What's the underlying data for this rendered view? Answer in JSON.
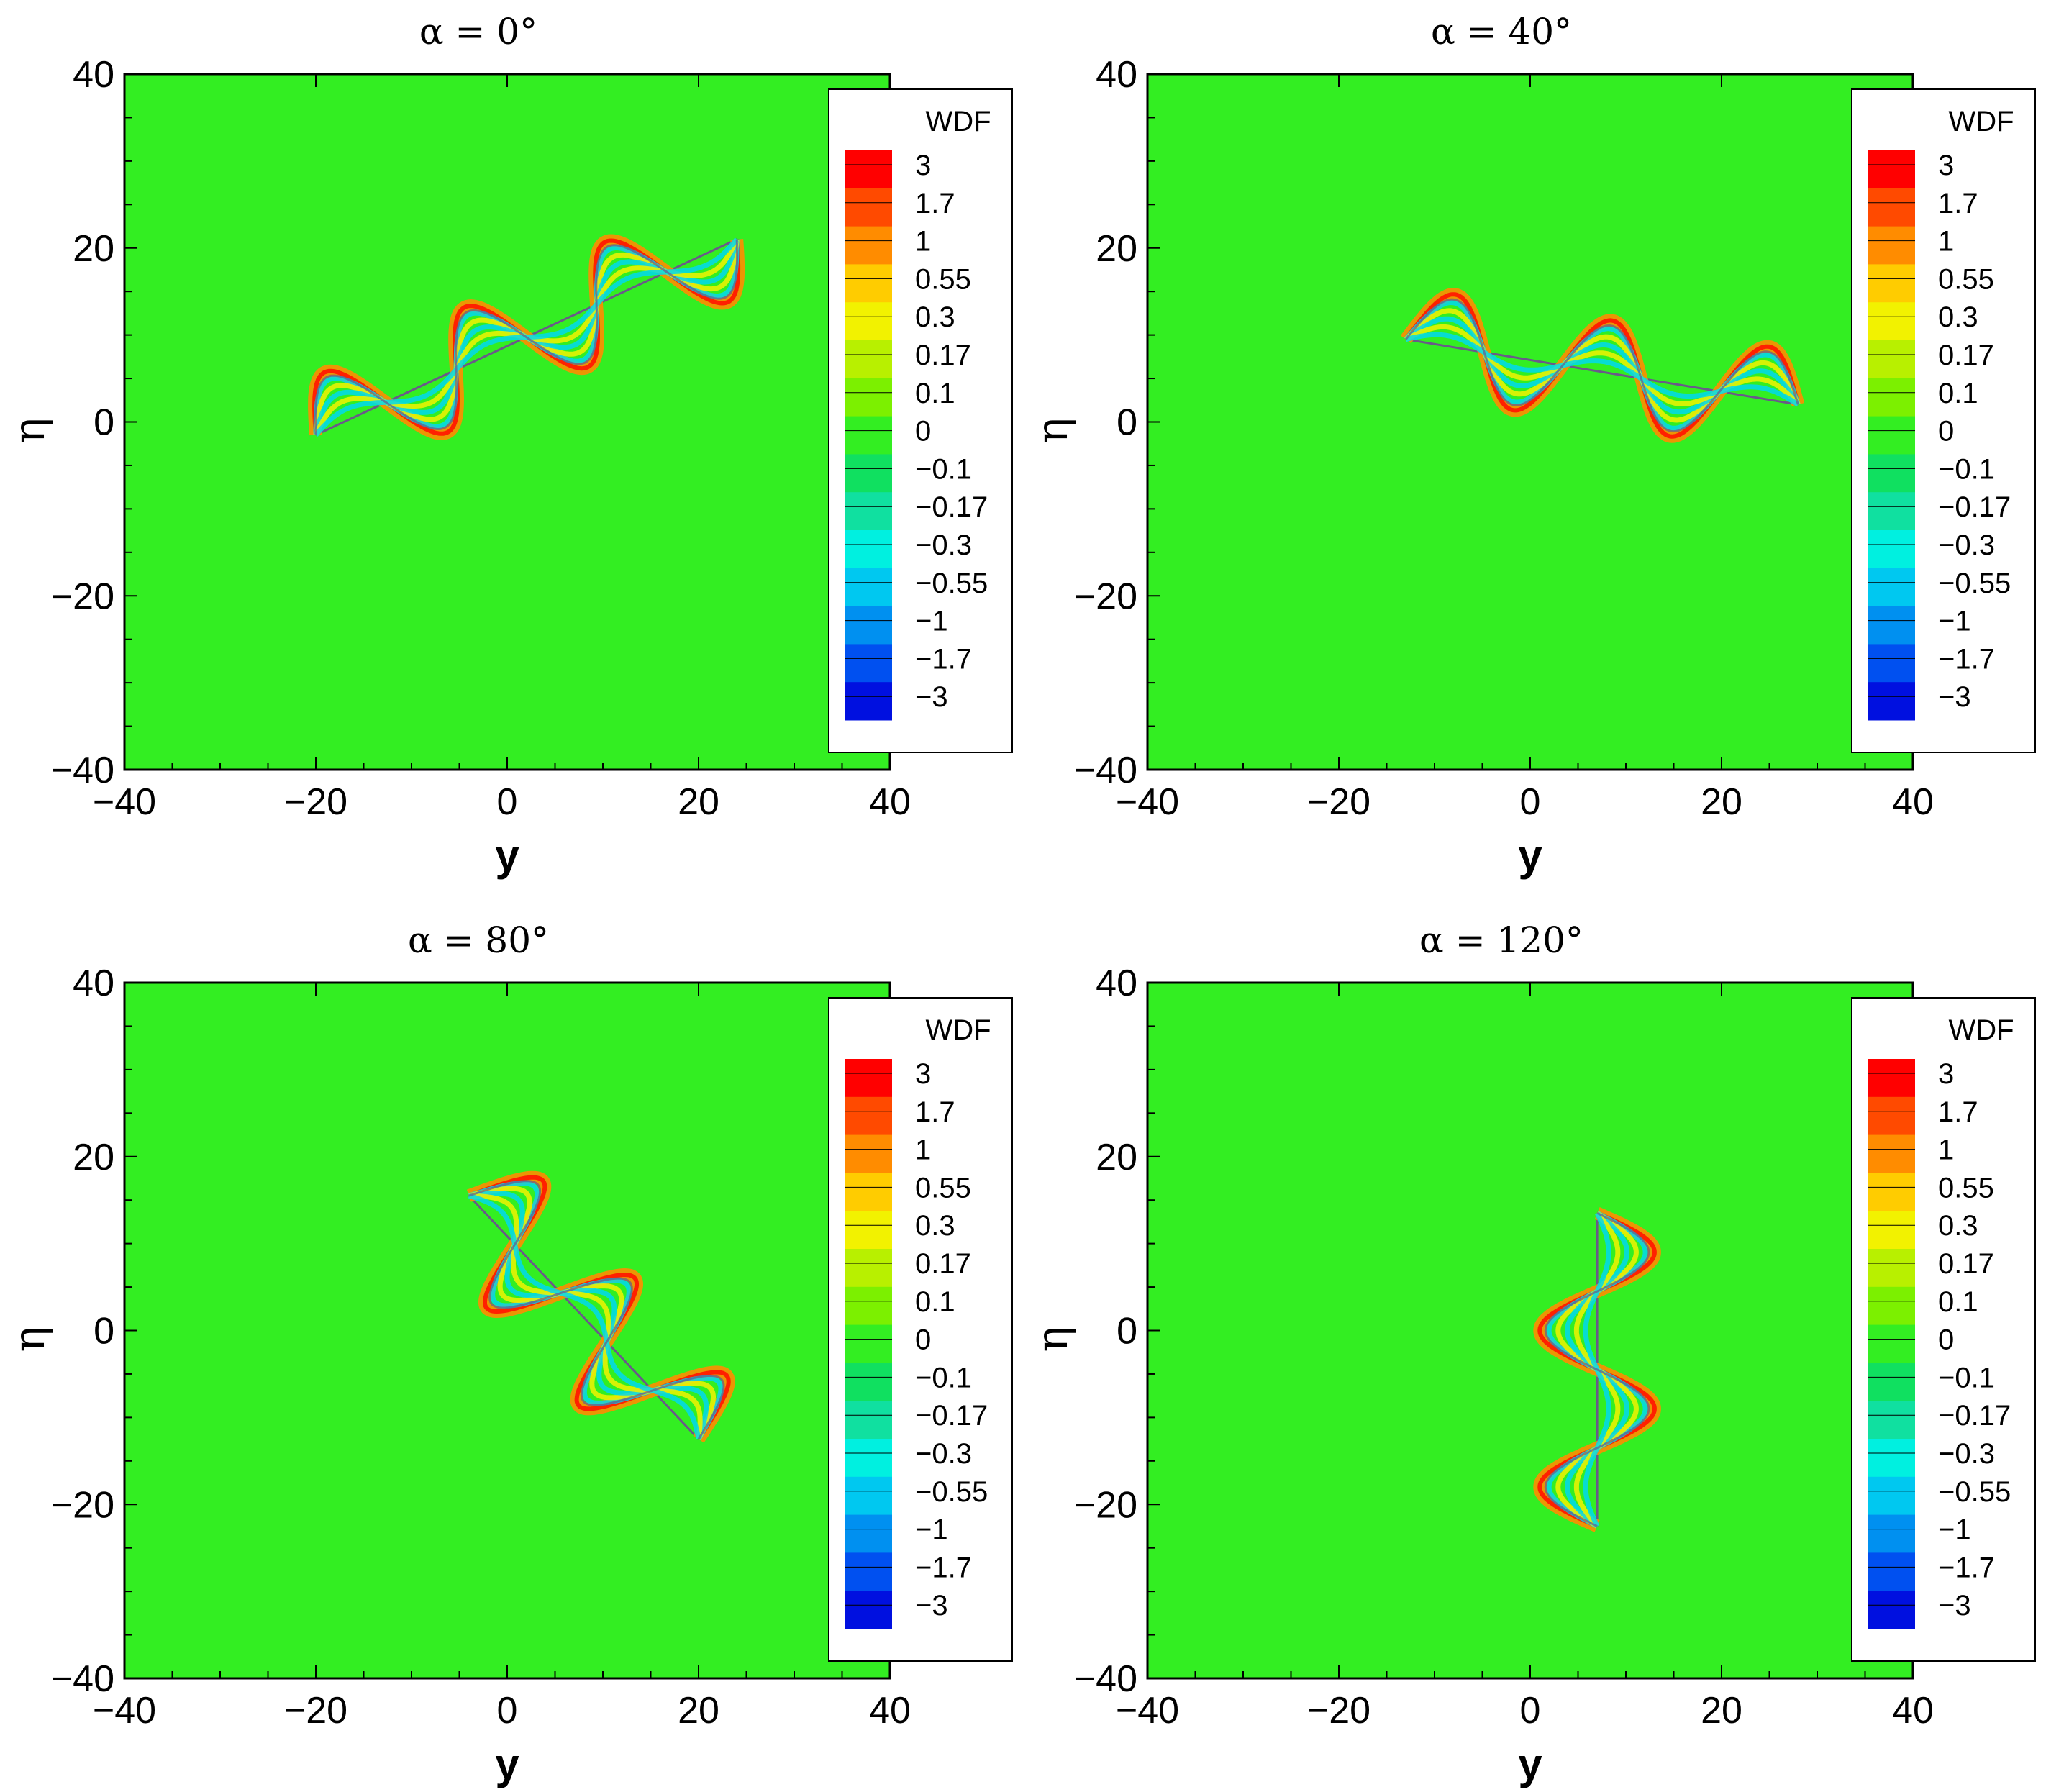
{
  "figure": {
    "colors": {
      "background_field": "#33ee22",
      "curve_edge": "#6a5a8a"
    }
  },
  "chart_data": [
    {
      "type": "heatmap",
      "title": "α = 0°",
      "xlabel": "y",
      "ylabel": "η",
      "xlim": [
        -40,
        40
      ],
      "ylim": [
        -40,
        40
      ],
      "xticks": [
        "−40",
        "−20",
        "0",
        "20",
        "40"
      ],
      "yticks": [
        "40",
        "20",
        "0",
        "−20",
        "−40"
      ],
      "legend": {
        "title": "WDF",
        "position": "right",
        "levels": [
          "3",
          "1.7",
          "1",
          "0.55",
          "0.3",
          "0.17",
          "0.1",
          "0",
          "−0.1",
          "−0.17",
          "−0.3",
          "−0.55",
          "−1",
          "−1.7",
          "−3"
        ],
        "colors": [
          "#ff0000",
          "#ff4a00",
          "#ff8c00",
          "#ffcc00",
          "#f2f200",
          "#b8f000",
          "#7cf000",
          "#33ee22",
          "#10e060",
          "#10e0a0",
          "#00f0e0",
          "#00c8f0",
          "#0090f0",
          "#0050f0",
          "#0010e0"
        ]
      },
      "structure": {
        "description": "chain of oscillating lobes",
        "center_line": {
          "y_start": -20,
          "y_end": 24,
          "eta_start": -1.5,
          "eta_end": 21
        },
        "amplitude": 6,
        "half_period": 8
      }
    },
    {
      "type": "heatmap",
      "title": "α = 40°",
      "xlabel": "y",
      "ylabel": "η",
      "xlim": [
        -40,
        40
      ],
      "ylim": [
        -40,
        40
      ],
      "xticks": [
        "−40",
        "−20",
        "0",
        "20",
        "40"
      ],
      "yticks": [
        "40",
        "20",
        "0",
        "−20",
        "−40"
      ],
      "legend": {
        "title": "WDF",
        "position": "right",
        "levels": [
          "3",
          "1.7",
          "1",
          "0.55",
          "0.3",
          "0.17",
          "0.1",
          "0",
          "−0.1",
          "−0.17",
          "−0.3",
          "−0.55",
          "−1",
          "−1.7",
          "−3"
        ],
        "colors": [
          "#ff0000",
          "#ff4a00",
          "#ff8c00",
          "#ffcc00",
          "#f2f200",
          "#b8f000",
          "#7cf000",
          "#33ee22",
          "#10e060",
          "#10e0a0",
          "#00f0e0",
          "#00c8f0",
          "#0090f0",
          "#0050f0",
          "#0010e0"
        ]
      },
      "structure": {
        "description": "chain of tilted lobes",
        "center_line": {
          "y_start": -13,
          "y_end": 28,
          "eta_start": 9.5,
          "eta_end": 2
        },
        "amplitude": 6,
        "half_period": 9
      }
    },
    {
      "type": "heatmap",
      "title": "α = 80°",
      "xlabel": "y",
      "ylabel": "η",
      "xlim": [
        -40,
        40
      ],
      "ylim": [
        -40,
        40
      ],
      "xticks": [
        "−40",
        "−20",
        "0",
        "20",
        "40"
      ],
      "yticks": [
        "40",
        "20",
        "0",
        "−20",
        "−40"
      ],
      "legend": {
        "title": "WDF",
        "position": "right",
        "levels": [
          "3",
          "1.7",
          "1",
          "0.55",
          "0.3",
          "0.17",
          "0.1",
          "0",
          "−0.1",
          "−0.17",
          "−0.3",
          "−0.55",
          "−1",
          "−1.7",
          "−3"
        ],
        "colors": [
          "#ff0000",
          "#ff4a00",
          "#ff8c00",
          "#ffcc00",
          "#f2f200",
          "#b8f000",
          "#7cf000",
          "#33ee22",
          "#10e060",
          "#10e0a0",
          "#00f0e0",
          "#00c8f0",
          "#0090f0",
          "#0050f0",
          "#0010e0"
        ]
      },
      "structure": {
        "description": "chain of horizontal lobes descending",
        "center_line": {
          "y_start": -4,
          "y_end": 20,
          "eta_start": 15.5,
          "eta_end": -12.5
        },
        "amplitude": 7,
        "half_period": 7
      }
    },
    {
      "type": "heatmap",
      "title": "α = 120°",
      "xlabel": "y",
      "ylabel": "η",
      "xlim": [
        -40,
        40
      ],
      "ylim": [
        -40,
        40
      ],
      "xticks": [
        "−40",
        "−20",
        "0",
        "20",
        "40"
      ],
      "yticks": [
        "40",
        "20",
        "0",
        "−20",
        "−40"
      ],
      "legend": {
        "title": "WDF",
        "position": "right",
        "levels": [
          "3",
          "1.7",
          "1",
          "0.55",
          "0.3",
          "0.17",
          "0.1",
          "0",
          "−0.1",
          "−0.17",
          "−0.3",
          "−0.55",
          "−1",
          "−1.7",
          "−3"
        ],
        "colors": [
          "#ff0000",
          "#ff4a00",
          "#ff8c00",
          "#ffcc00",
          "#f2f200",
          "#b8f000",
          "#7cf000",
          "#33ee22",
          "#10e060",
          "#10e0a0",
          "#00f0e0",
          "#00c8f0",
          "#0090f0",
          "#0050f0",
          "#0010e0"
        ]
      },
      "structure": {
        "description": "vertical stack of lobes",
        "center_line": {
          "y_start": 7,
          "y_end": 7,
          "eta_start": 13.5,
          "eta_end": -22.5
        },
        "amplitude": 6,
        "half_period": 9
      }
    }
  ]
}
